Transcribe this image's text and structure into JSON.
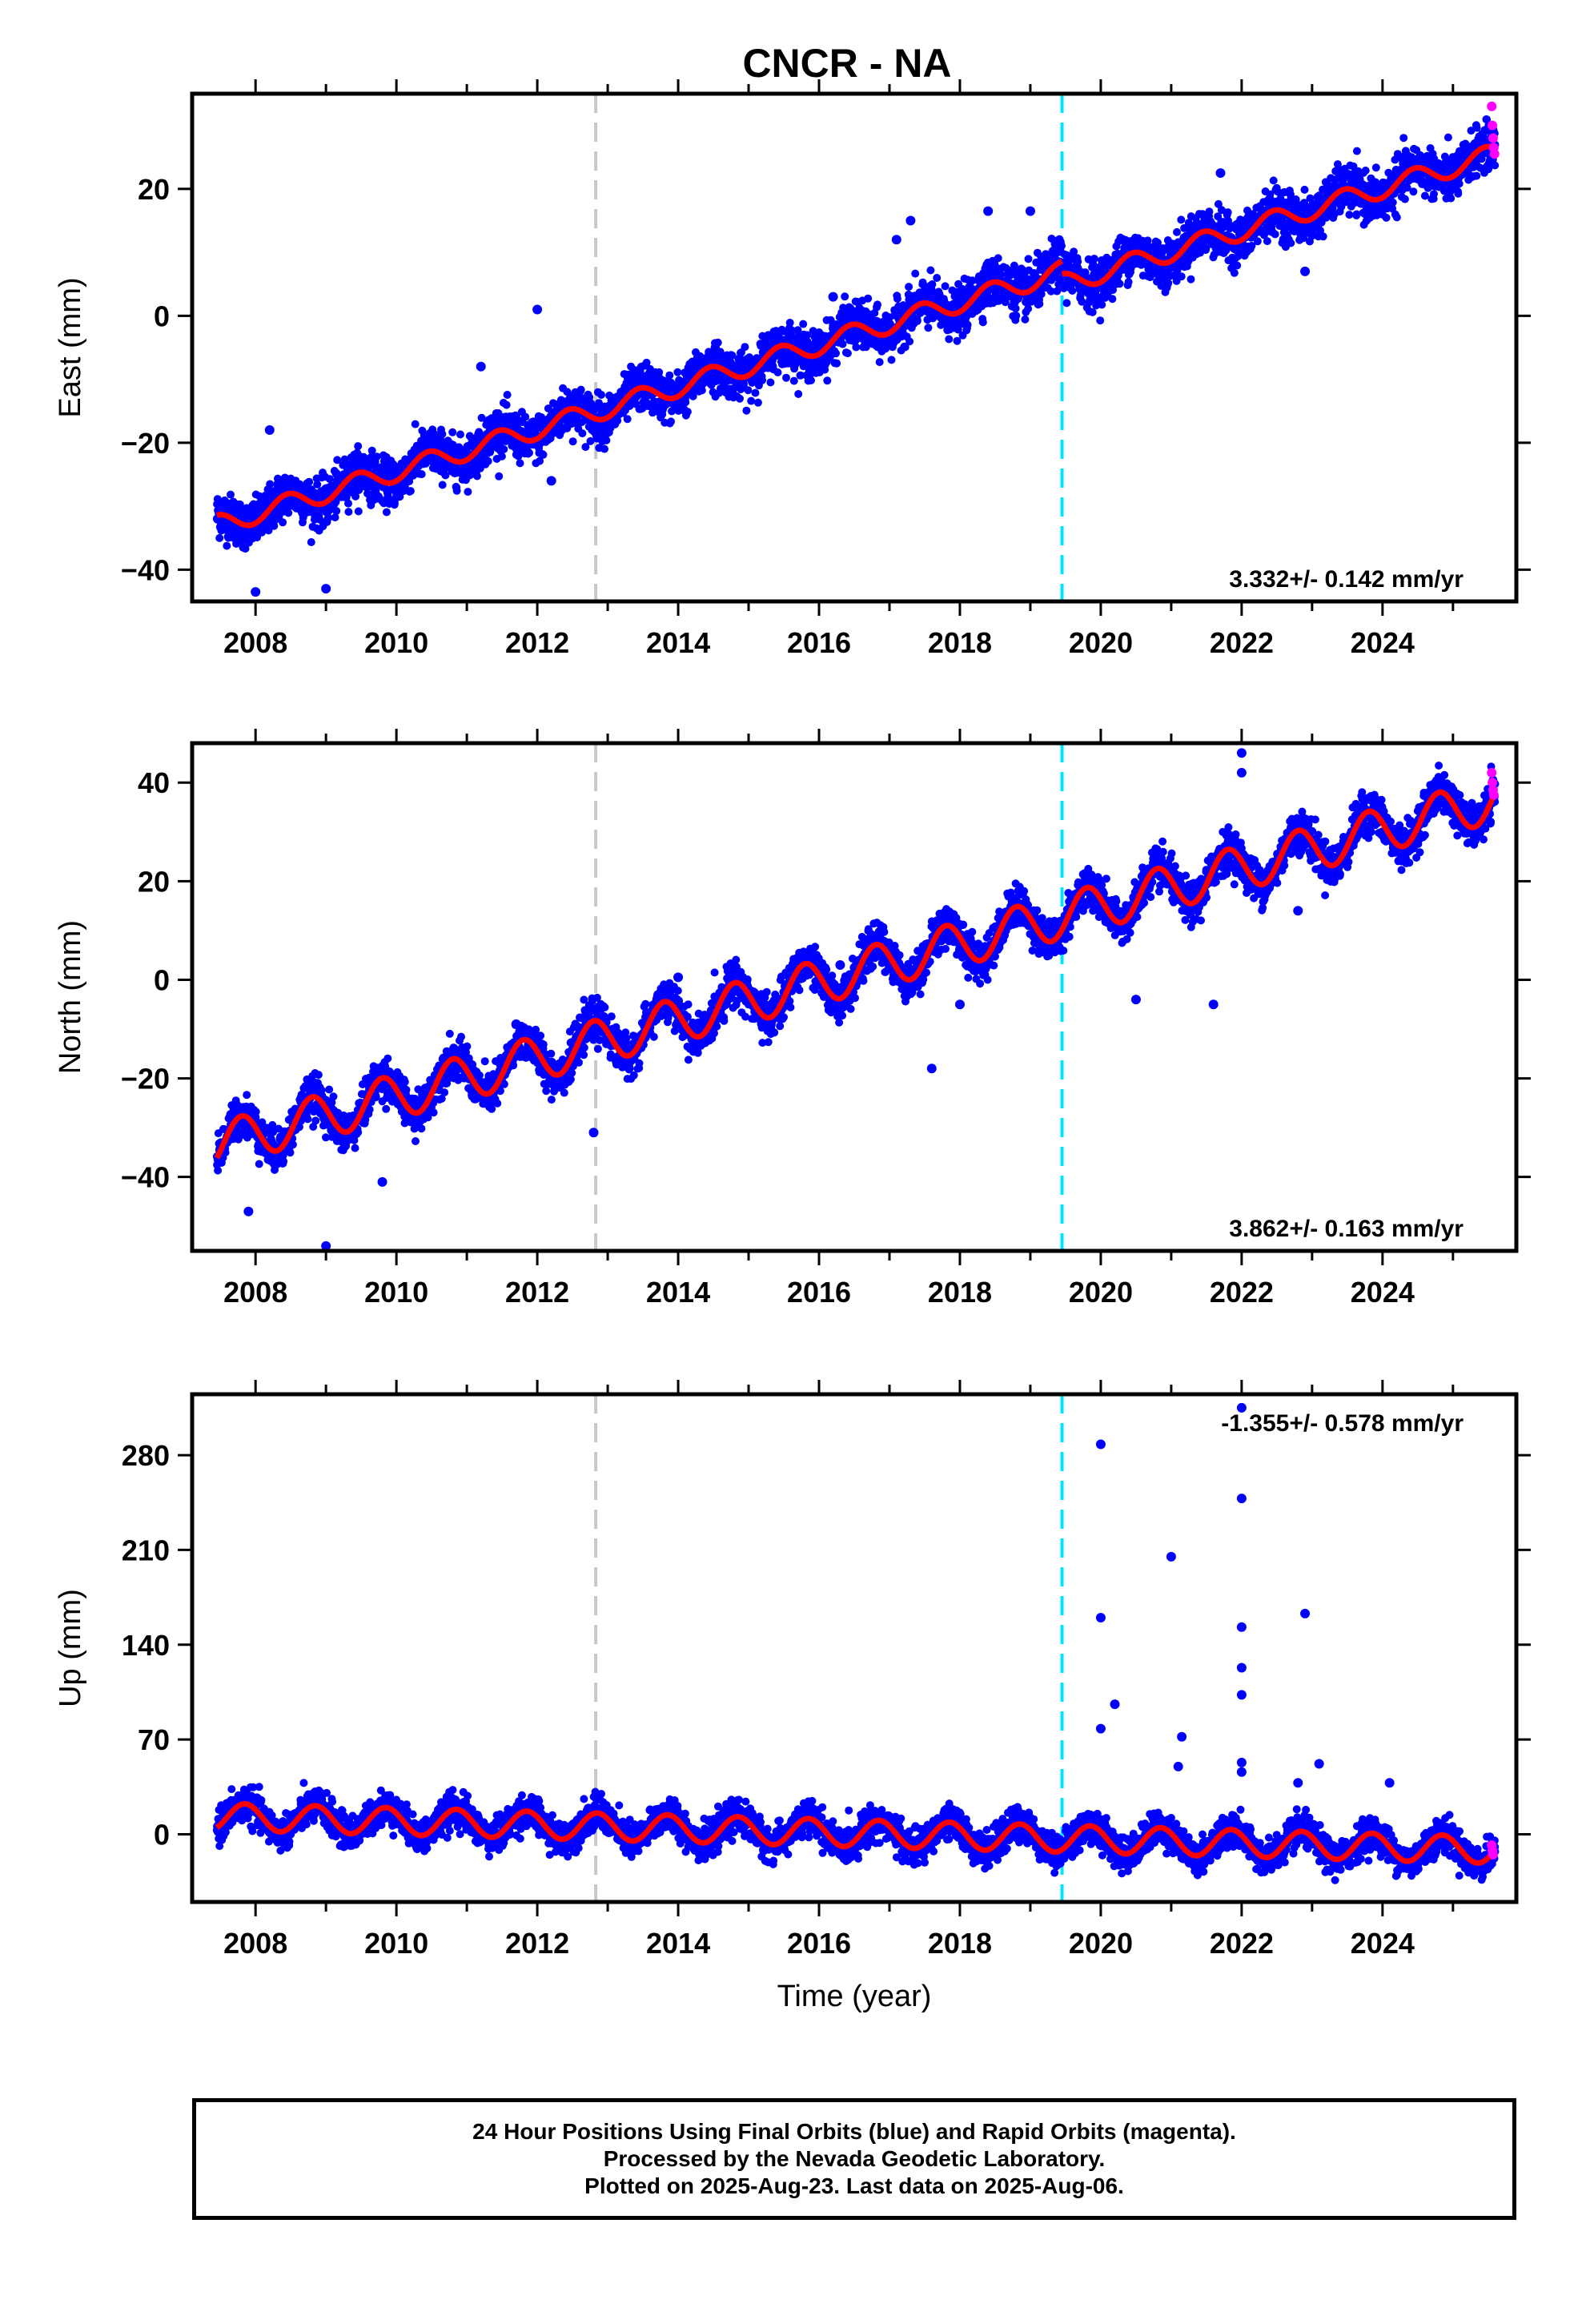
{
  "title": "CNCR - NA",
  "colors": {
    "final": "#0000ff",
    "rapid": "#ff00ff",
    "model": "#ff0000",
    "event_gray": "#c8c8c8",
    "event_cyan": "#00e5ff"
  },
  "footer": {
    "line1": "24 Hour Positions Using Final Orbits (blue) and Rapid Orbits (magenta).",
    "line2": "Processed by the Nevada Geodetic Laboratory.",
    "line3": "Plotted on 2025-Aug-23. Last data on 2025-Aug-06."
  },
  "chart_data": [
    {
      "type": "scatter",
      "component": "east",
      "ylabel": "East (mm)",
      "xlabel": "",
      "xlim": [
        2007.1,
        2025.9
      ],
      "ylim": [
        -45,
        35
      ],
      "yticks": [
        -40,
        -20,
        0,
        20
      ],
      "xticks": [
        2008,
        2010,
        2012,
        2014,
        2016,
        2018,
        2020,
        2022,
        2024
      ],
      "rate_label": "3.332+/- 0.142 mm/yr",
      "rate_position": "bottom-right",
      "events": [
        {
          "x": 2012.83,
          "color": "gray"
        },
        {
          "x": 2019.45,
          "color": "cyan"
        }
      ],
      "model": {
        "start": 2007.45,
        "end": 2025.6,
        "rate": 3.332,
        "value_at_start": -33.0,
        "annual_amplitude": 1.6,
        "annual_phase": 0.2,
        "offsets": [
          {
            "x": 2019.45,
            "dy": -2.0
          }
        ]
      },
      "scatter_sigma": 1.8,
      "outliers": [
        {
          "x": 2008.0,
          "y": -43.5
        },
        {
          "x": 2008.2,
          "y": -18.0
        },
        {
          "x": 2009.0,
          "y": -43.0
        },
        {
          "x": 2011.2,
          "y": -8.0
        },
        {
          "x": 2012.0,
          "y": 1.0
        },
        {
          "x": 2012.2,
          "y": -26.0
        },
        {
          "x": 2016.2,
          "y": 3.0
        },
        {
          "x": 2017.1,
          "y": 12.0
        },
        {
          "x": 2017.3,
          "y": 15.0
        },
        {
          "x": 2018.4,
          "y": 16.5
        },
        {
          "x": 2019.0,
          "y": 16.5
        },
        {
          "x": 2021.7,
          "y": 22.5
        },
        {
          "x": 2022.6,
          "y": 12.0
        },
        {
          "x": 2022.9,
          "y": 7.0
        }
      ],
      "rapid": [
        {
          "x": 2025.55,
          "y": 33.0
        },
        {
          "x": 2025.56,
          "y": 30.0
        },
        {
          "x": 2025.57,
          "y": 28.0
        },
        {
          "x": 2025.58,
          "y": 26.5
        },
        {
          "x": 2025.59,
          "y": 25.5
        }
      ]
    },
    {
      "type": "scatter",
      "component": "north",
      "ylabel": "North (mm)",
      "xlabel": "",
      "xlim": [
        2007.1,
        2025.9
      ],
      "ylim": [
        -55,
        48
      ],
      "yticks": [
        -40,
        -20,
        0,
        20,
        40
      ],
      "xticks": [
        2008,
        2010,
        2012,
        2014,
        2016,
        2018,
        2020,
        2022,
        2024
      ],
      "rate_label": "3.862+/- 0.163 mm/yr",
      "rate_position": "bottom-right",
      "events": [
        {
          "x": 2012.83,
          "color": "gray"
        },
        {
          "x": 2019.45,
          "color": "cyan"
        }
      ],
      "model": {
        "start": 2007.45,
        "end": 2025.6,
        "rate": 3.862,
        "value_at_start": -33.5,
        "annual_amplitude": 4.5,
        "annual_phase": 0.55,
        "offsets": []
      },
      "scatter_sigma": 2.0,
      "outliers": [
        {
          "x": 2007.9,
          "y": -47.0
        },
        {
          "x": 2009.0,
          "y": -54.0
        },
        {
          "x": 2009.8,
          "y": -41.0
        },
        {
          "x": 2011.7,
          "y": -9.0
        },
        {
          "x": 2012.8,
          "y": -31.0
        },
        {
          "x": 2014.0,
          "y": 0.5
        },
        {
          "x": 2016.3,
          "y": 3.0
        },
        {
          "x": 2017.6,
          "y": -18.0
        },
        {
          "x": 2018.0,
          "y": -5.0
        },
        {
          "x": 2020.5,
          "y": -4.0
        },
        {
          "x": 2021.6,
          "y": -5.0
        },
        {
          "x": 2022.0,
          "y": 46.0
        },
        {
          "x": 2022.0,
          "y": 42.0
        },
        {
          "x": 2022.8,
          "y": 14.0
        }
      ],
      "rapid": [
        {
          "x": 2025.55,
          "y": 42.0
        },
        {
          "x": 2025.56,
          "y": 40.0
        },
        {
          "x": 2025.57,
          "y": 38.5
        },
        {
          "x": 2025.58,
          "y": 37.5
        }
      ]
    },
    {
      "type": "scatter",
      "component": "up",
      "ylabel": "Up (mm)",
      "xlabel": "Time (year)",
      "xlim": [
        2007.1,
        2025.9
      ],
      "ylim": [
        -50,
        325
      ],
      "yticks": [
        0,
        70,
        140,
        210,
        280
      ],
      "xticks": [
        2008,
        2010,
        2012,
        2014,
        2016,
        2018,
        2020,
        2022,
        2024
      ],
      "rate_label": "-1.355+/- 0.578 mm/yr",
      "rate_position": "top-right",
      "events": [
        {
          "x": 2012.83,
          "color": "gray"
        },
        {
          "x": 2019.45,
          "color": "cyan"
        }
      ],
      "model": {
        "start": 2007.45,
        "end": 2025.6,
        "rate": -1.355,
        "value_at_start": 13.0,
        "annual_amplitude": 10.0,
        "annual_phase": 0.6,
        "offsets": []
      },
      "scatter_sigma": 6.0,
      "outliers": [
        {
          "x": 2020.0,
          "y": 288.0
        },
        {
          "x": 2020.0,
          "y": 160.0
        },
        {
          "x": 2020.0,
          "y": 78.0
        },
        {
          "x": 2020.2,
          "y": 96.0
        },
        {
          "x": 2021.0,
          "y": 205.0
        },
        {
          "x": 2021.15,
          "y": 72.0
        },
        {
          "x": 2021.1,
          "y": 50.0
        },
        {
          "x": 2022.0,
          "y": 315.0
        },
        {
          "x": 2022.0,
          "y": 248.0
        },
        {
          "x": 2022.0,
          "y": 153.0
        },
        {
          "x": 2022.0,
          "y": 123.0
        },
        {
          "x": 2022.0,
          "y": 103.0
        },
        {
          "x": 2022.0,
          "y": 53.0
        },
        {
          "x": 2022.0,
          "y": 46.0
        },
        {
          "x": 2022.9,
          "y": 163.0
        },
        {
          "x": 2023.1,
          "y": 52.0
        },
        {
          "x": 2024.1,
          "y": 38.0
        },
        {
          "x": 2022.8,
          "y": 38.0
        }
      ],
      "rapid": [
        {
          "x": 2025.55,
          "y": -8.0
        },
        {
          "x": 2025.56,
          "y": -12.0
        },
        {
          "x": 2025.57,
          "y": -15.0
        }
      ]
    }
  ]
}
